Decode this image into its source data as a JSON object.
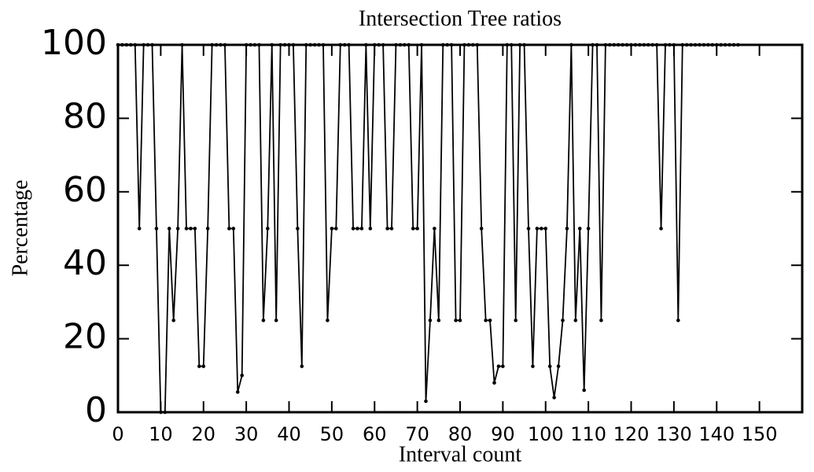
{
  "chart_data": {
    "type": "line",
    "title": "Intersection Tree ratios",
    "x_label": "Interval count",
    "y_label": "Percentage",
    "x": [
      0,
      1,
      2,
      3,
      4,
      5,
      6,
      7,
      8,
      9,
      10,
      11,
      12,
      13,
      14,
      15,
      16,
      17,
      18,
      19,
      20,
      21,
      22,
      23,
      24,
      25,
      26,
      27,
      28,
      29,
      30,
      31,
      32,
      33,
      34,
      35,
      36,
      37,
      38,
      39,
      40,
      41,
      42,
      43,
      44,
      45,
      46,
      47,
      48,
      49,
      50,
      51,
      52,
      53,
      54,
      55,
      56,
      57,
      58,
      59,
      60,
      61,
      62,
      63,
      64,
      65,
      66,
      67,
      68,
      69,
      70,
      71,
      72,
      73,
      74,
      75,
      76,
      77,
      78,
      79,
      80,
      81,
      82,
      83,
      84,
      85,
      86,
      87,
      88,
      89,
      90,
      91,
      92,
      93,
      94,
      95,
      96,
      97,
      98,
      99,
      100,
      101,
      102,
      103,
      104,
      105,
      106,
      107,
      108,
      109,
      110,
      111,
      112,
      113,
      114,
      115,
      116,
      117,
      118,
      119,
      120,
      121,
      122,
      123,
      124,
      125,
      126,
      127,
      128,
      129,
      130,
      131,
      132,
      133,
      134,
      135,
      136,
      137,
      138,
      139,
      140,
      141,
      142,
      143,
      144,
      145
    ],
    "series": [
      {
        "color": "#000000",
        "values": [
          100,
          100,
          100,
          100,
          100,
          50,
          100,
          100,
          100,
          50,
          0,
          0,
          50,
          25,
          50,
          100,
          50,
          50,
          50,
          12.5,
          12.5,
          50,
          100,
          100,
          100,
          100,
          50,
          50,
          5.5,
          10,
          100,
          100,
          100,
          100,
          25,
          50,
          100,
          25,
          100,
          100,
          100,
          100,
          50,
          12.5,
          100,
          100,
          100,
          100,
          100,
          25,
          50,
          50,
          100,
          100,
          100,
          50,
          50,
          50,
          100,
          50,
          100,
          100,
          100,
          50,
          50,
          100,
          100,
          100,
          100,
          50,
          50,
          100,
          3,
          25,
          50,
          25,
          100,
          100,
          100,
          25,
          25,
          100,
          100,
          100,
          100,
          50,
          25,
          25,
          8,
          12.5,
          12.5,
          100,
          100,
          25,
          100,
          100,
          50,
          12.5,
          50,
          50,
          50,
          12.5,
          4,
          12.5,
          25,
          50,
          100,
          25,
          50,
          6,
          50,
          100,
          100,
          25,
          100,
          100,
          100,
          100,
          100,
          100,
          100,
          100,
          100,
          100,
          100,
          100,
          100,
          50,
          100,
          100,
          100,
          25,
          100,
          100,
          100,
          100,
          100,
          100,
          100,
          100,
          100,
          100,
          100,
          100,
          100,
          100
        ]
      }
    ],
    "xlim": [
      0,
      160
    ],
    "xticks": [
      0,
      10,
      20,
      30,
      40,
      50,
      60,
      70,
      80,
      90,
      100,
      110,
      120,
      130,
      140,
      150
    ],
    "ylim": [
      0,
      100
    ],
    "yticks": [
      0,
      20,
      40,
      60,
      80,
      100
    ]
  }
}
